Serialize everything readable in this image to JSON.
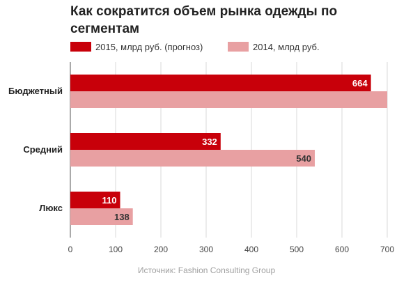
{
  "chart_data": {
    "type": "bar",
    "orientation": "horizontal",
    "title": "Как сократится объем рынка одежды по сегментам",
    "categories": [
      "Бюджетный",
      "Средний",
      "Люкс"
    ],
    "series": [
      {
        "name": "2015, млрд руб. (прогноз)",
        "values": [
          664,
          332,
          110
        ],
        "color": "#c8000a",
        "label_color": "#ffffff"
      },
      {
        "name": "2014, млрд руб.",
        "values": [
          700,
          540,
          138
        ],
        "color": "#e8a0a2",
        "label_color": "#333333"
      }
    ],
    "data_labels": [
      [
        "664",
        "332",
        "110"
      ],
      [
        "",
        "540",
        "138"
      ]
    ],
    "x_ticks": [
      0,
      100,
      200,
      300,
      400,
      500,
      600,
      700
    ],
    "xlim": [
      0,
      700
    ],
    "grid": true,
    "legend_position": "top",
    "xlabel": "",
    "ylabel": ""
  },
  "source": "Источник: Fashion Consulting Group"
}
